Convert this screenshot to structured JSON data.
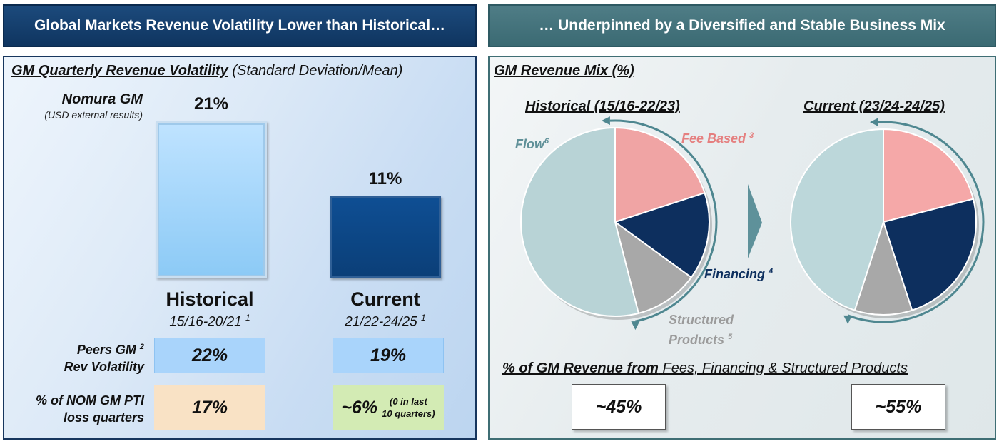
{
  "left": {
    "header": "Global Markets Revenue Volatility Lower than Historical…",
    "subtitle_main": "GM Quarterly Revenue Volatility",
    "subtitle_note": "(Standard Deviation/Mean)",
    "nomura_label": "Nomura GM",
    "nomura_sub": "(USD external results)",
    "historical_label": "Historical",
    "historical_period": "15/16-20/21",
    "historical_sup": "1",
    "current_label": "Current",
    "current_period": "21/22-24/25",
    "current_sup": "1",
    "peers_label_1": "Peers GM",
    "peers_sup": "2",
    "peers_label_2": "Rev Volatility",
    "peers_hist": "22%",
    "peers_curr": "19%",
    "loss_label_1": "% of NOM GM PTI",
    "loss_label_2": "loss quarters",
    "loss_hist": "17%",
    "loss_curr_main": "~6%",
    "loss_curr_note_1": "(0 in last",
    "loss_curr_note_2": "10 quarters)"
  },
  "right": {
    "header": "… Underpinned by a Diversified and Stable Business Mix",
    "subtitle": "GM Revenue Mix (%)",
    "hist_title": "Historical (15/16-22/23)",
    "curr_title": "Current (23/24-24/25)",
    "label_flow": "Flow",
    "flow_sup": "6",
    "label_fee": "Fee Based",
    "fee_sup": "3",
    "label_fin": "Financing",
    "fin_sup": "4",
    "label_struct_1": "Structured",
    "label_struct_2": "Products",
    "struct_sup": "5",
    "pct_title_bold": "% of GM Revenue from",
    "pct_title_rest": "Fees, Financing & Structured Products",
    "pct_hist": "~45%",
    "pct_curr": "~55%"
  },
  "chart_data": [
    {
      "type": "bar",
      "title": "GM Quarterly Revenue Volatility",
      "categories": [
        "Historical",
        "Current"
      ],
      "values": [
        21,
        11
      ],
      "value_labels": [
        "21%",
        "11%"
      ],
      "colors": [
        "#a6d6fb",
        "#0b4585"
      ]
    },
    {
      "type": "pie",
      "title": "Historical (15/16-22/23)",
      "categories": [
        "Fee Based",
        "Financing",
        "Structured Products",
        "Flow"
      ],
      "values": [
        20,
        15,
        11,
        54
      ],
      "colors": [
        "#f0a4a4",
        "#0d2f5e",
        "#a8a8a8",
        "#b8d3d6"
      ]
    },
    {
      "type": "pie",
      "title": "Current (23/24-24/25)",
      "categories": [
        "Fee Based",
        "Financing",
        "Structured Products",
        "Flow"
      ],
      "values": [
        21,
        24,
        10,
        45
      ],
      "colors": [
        "#f5a8a8",
        "#0d2f5e",
        "#a8a8a8",
        "#bcd7da"
      ]
    }
  ]
}
